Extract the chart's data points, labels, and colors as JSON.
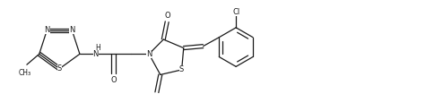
{
  "bg_color": "#ffffff",
  "line_color": "#1a1a1a",
  "font_size": 6.5,
  "bond_lw": 0.9,
  "figsize": [
    4.94,
    1.05
  ],
  "dpi": 100,
  "xlim": [
    -0.05,
    4.94
  ],
  "ylim": [
    0.0,
    1.05
  ]
}
